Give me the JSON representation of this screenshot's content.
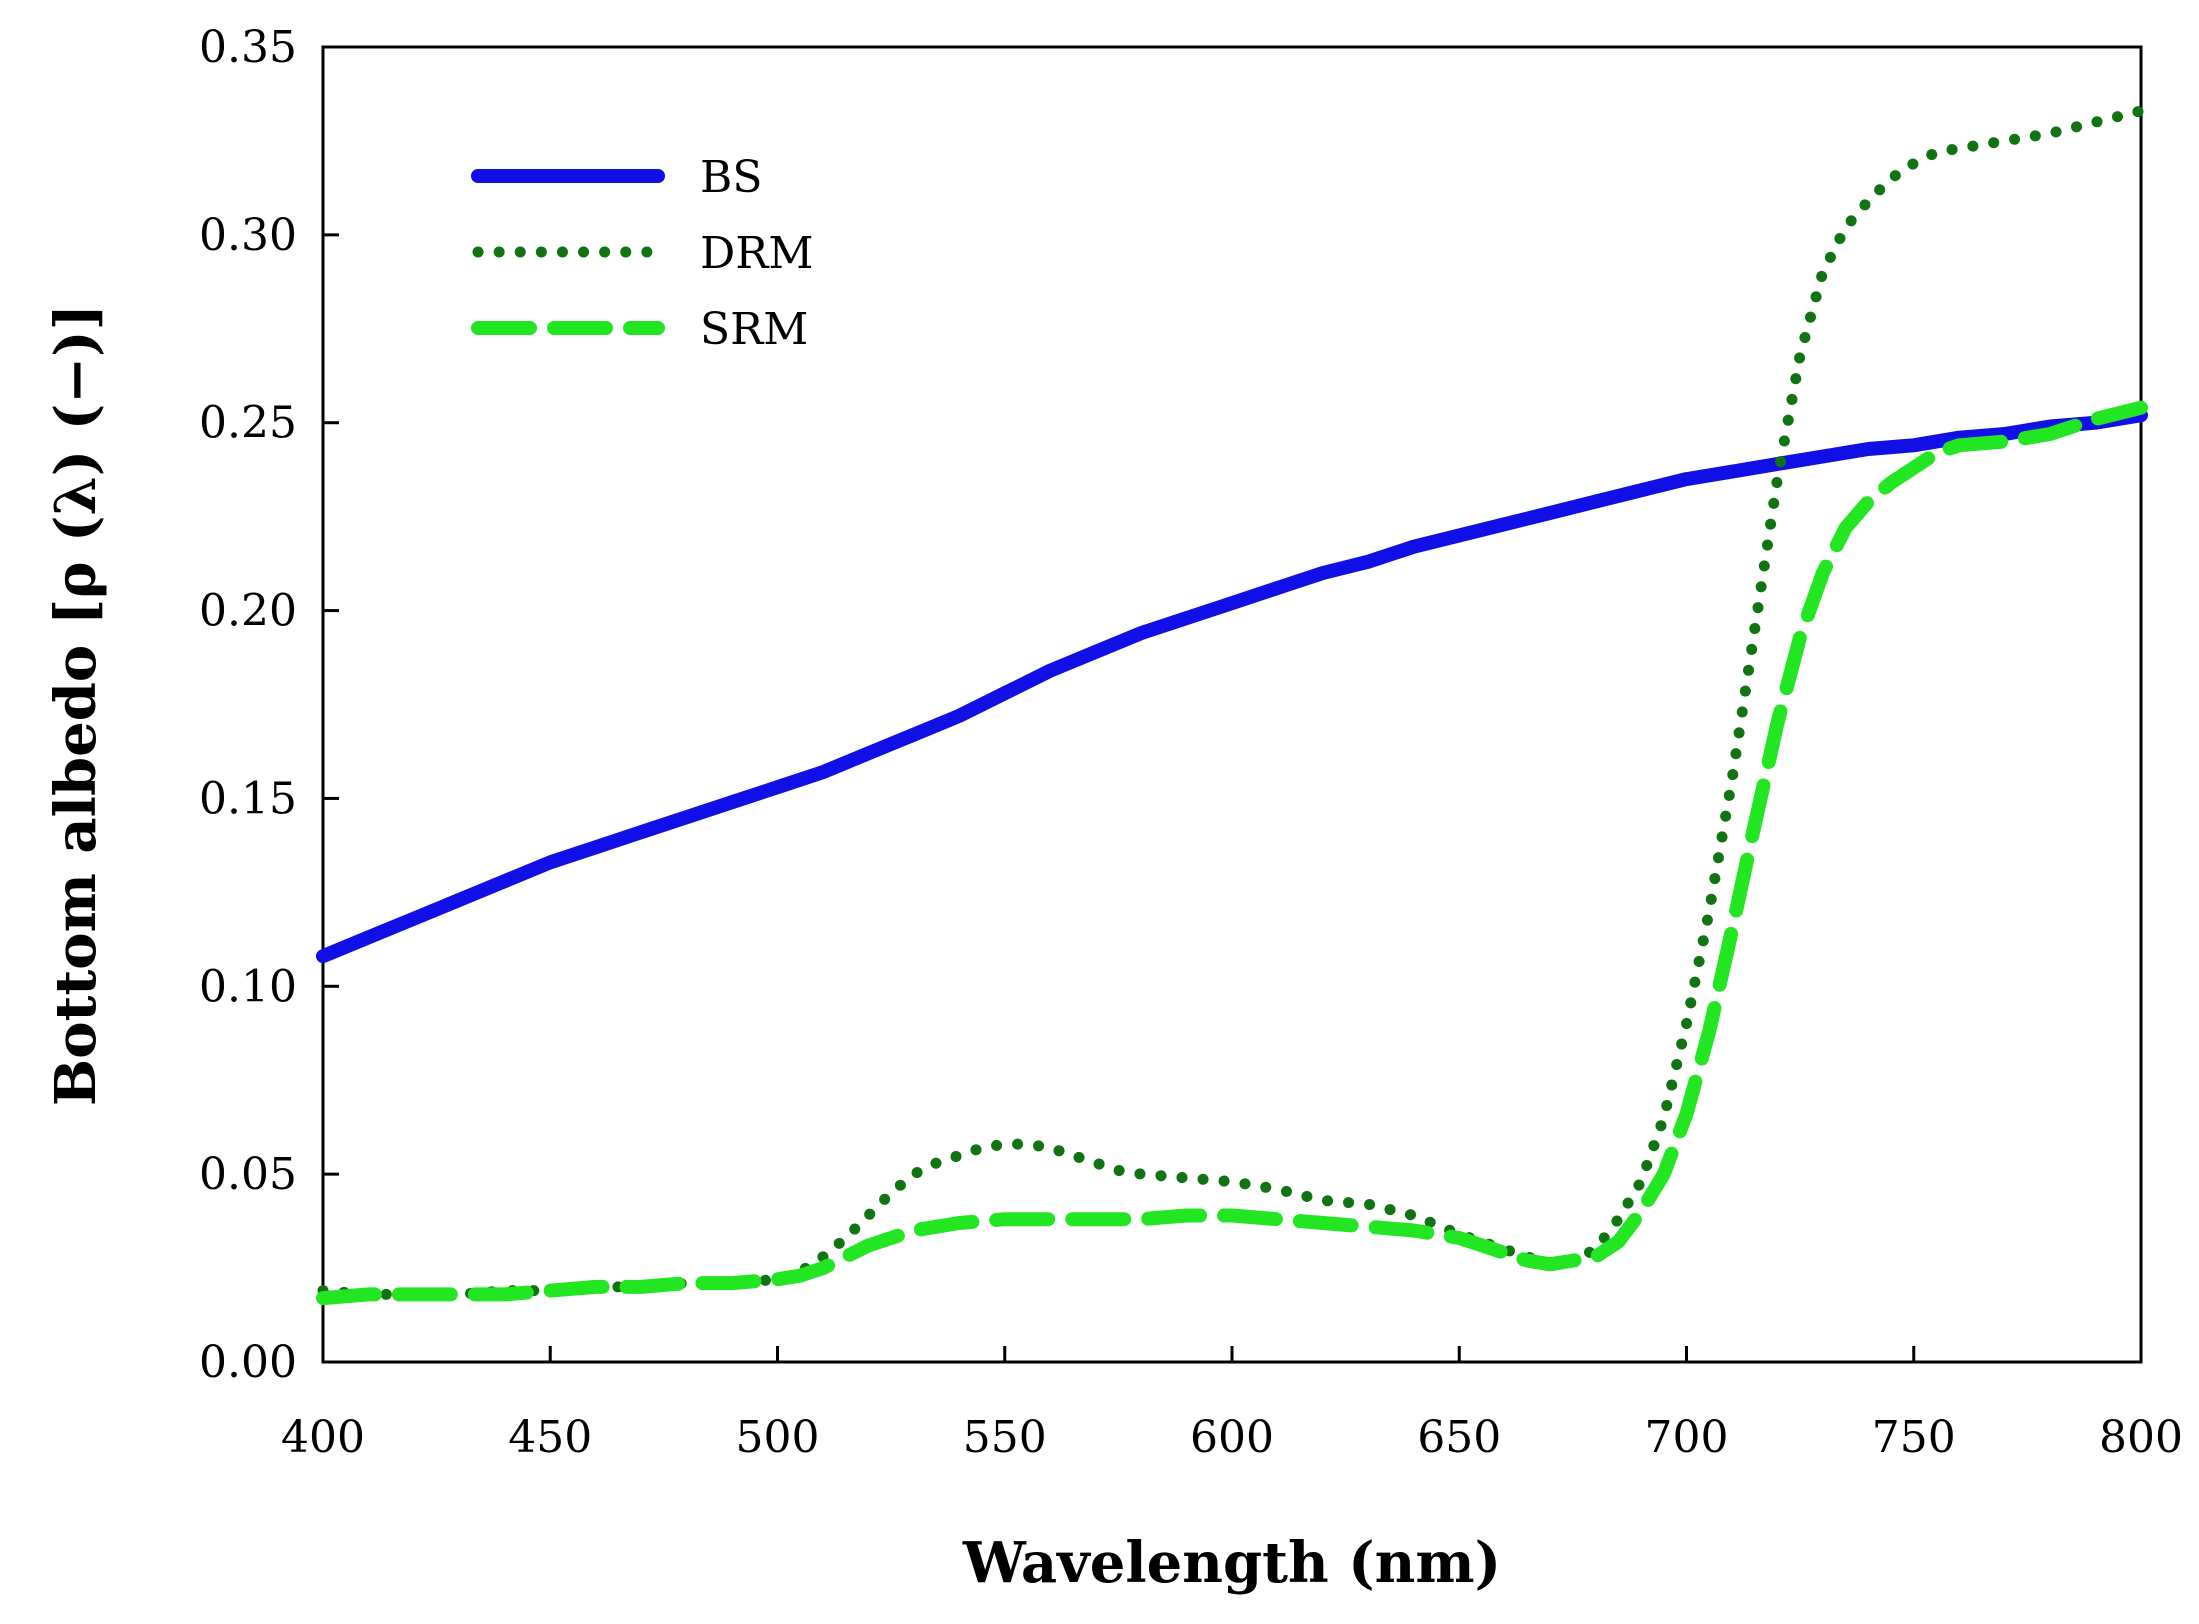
{
  "chart_data": {
    "type": "line",
    "title": "",
    "xlabel": "Wavelength (nm)",
    "ylabel": "Bottom albedo [ρ (λ) (−)]",
    "xlim": [
      400,
      800
    ],
    "ylim": [
      0,
      0.35
    ],
    "xticks": [
      400,
      450,
      500,
      550,
      600,
      650,
      700,
      750,
      800
    ],
    "yticks": [
      0.0,
      0.05,
      0.1,
      0.15,
      0.2,
      0.25,
      0.3,
      0.35
    ],
    "xtick_labels": [
      "400",
      "450",
      "500",
      "550",
      "600",
      "650",
      "700",
      "750",
      "800"
    ],
    "ytick_labels": [
      "0.00",
      "0.05",
      "0.10",
      "0.15",
      "0.20",
      "0.25",
      "0.30",
      "0.35"
    ],
    "grid": false,
    "legend_position": "top-left",
    "series": [
      {
        "name": "BS",
        "color": "#1010e6",
        "style": "solid",
        "x": [
          400,
          410,
          420,
          430,
          440,
          450,
          460,
          470,
          480,
          490,
          500,
          510,
          520,
          530,
          540,
          550,
          560,
          570,
          580,
          590,
          600,
          610,
          620,
          630,
          640,
          650,
          660,
          670,
          680,
          690,
          700,
          710,
          720,
          730,
          740,
          750,
          760,
          770,
          780,
          790,
          800
        ],
        "values": [
          0.108,
          0.113,
          0.118,
          0.123,
          0.128,
          0.133,
          0.137,
          0.141,
          0.145,
          0.149,
          0.153,
          0.157,
          0.162,
          0.167,
          0.172,
          0.178,
          0.184,
          0.189,
          0.194,
          0.198,
          0.202,
          0.206,
          0.21,
          0.213,
          0.217,
          0.22,
          0.223,
          0.226,
          0.229,
          0.232,
          0.235,
          0.237,
          0.239,
          0.241,
          0.243,
          0.244,
          0.246,
          0.247,
          0.249,
          0.25,
          0.252
        ]
      },
      {
        "name": "DRM",
        "color": "#127312",
        "style": "dotted",
        "x": [
          400,
          410,
          420,
          430,
          440,
          450,
          460,
          470,
          480,
          490,
          500,
          505,
          510,
          515,
          520,
          525,
          530,
          535,
          540,
          545,
          550,
          555,
          560,
          565,
          570,
          575,
          580,
          590,
          600,
          610,
          620,
          630,
          640,
          650,
          660,
          665,
          670,
          675,
          680,
          685,
          690,
          695,
          700,
          705,
          710,
          715,
          720,
          725,
          730,
          735,
          740,
          745,
          750,
          755,
          760,
          770,
          780,
          790,
          800
        ],
        "values": [
          0.019,
          0.018,
          0.018,
          0.018,
          0.019,
          0.019,
          0.02,
          0.02,
          0.021,
          0.021,
          0.022,
          0.024,
          0.028,
          0.033,
          0.039,
          0.045,
          0.05,
          0.053,
          0.055,
          0.057,
          0.058,
          0.058,
          0.057,
          0.055,
          0.053,
          0.051,
          0.05,
          0.049,
          0.048,
          0.046,
          0.043,
          0.042,
          0.039,
          0.034,
          0.03,
          0.028,
          0.026,
          0.027,
          0.03,
          0.038,
          0.048,
          0.065,
          0.09,
          0.12,
          0.155,
          0.195,
          0.235,
          0.268,
          0.29,
          0.302,
          0.309,
          0.315,
          0.319,
          0.322,
          0.323,
          0.325,
          0.327,
          0.33,
          0.333
        ]
      },
      {
        "name": "SRM",
        "color": "#22e622",
        "style": "dashed",
        "x": [
          400,
          410,
          420,
          430,
          440,
          450,
          460,
          470,
          480,
          490,
          500,
          505,
          510,
          515,
          520,
          525,
          530,
          540,
          550,
          560,
          570,
          580,
          590,
          600,
          610,
          620,
          630,
          640,
          650,
          660,
          665,
          670,
          675,
          680,
          685,
          690,
          695,
          700,
          705,
          710,
          715,
          720,
          725,
          730,
          735,
          740,
          745,
          750,
          755,
          760,
          770,
          780,
          790,
          800
        ],
        "values": [
          0.017,
          0.018,
          0.018,
          0.018,
          0.018,
          0.019,
          0.02,
          0.02,
          0.021,
          0.021,
          0.022,
          0.023,
          0.025,
          0.028,
          0.031,
          0.033,
          0.035,
          0.037,
          0.038,
          0.038,
          0.038,
          0.038,
          0.039,
          0.039,
          0.038,
          0.037,
          0.036,
          0.035,
          0.033,
          0.029,
          0.027,
          0.026,
          0.027,
          0.028,
          0.032,
          0.04,
          0.05,
          0.066,
          0.088,
          0.115,
          0.143,
          0.17,
          0.193,
          0.21,
          0.222,
          0.229,
          0.234,
          0.238,
          0.242,
          0.244,
          0.245,
          0.247,
          0.251,
          0.254
        ]
      }
    ]
  }
}
